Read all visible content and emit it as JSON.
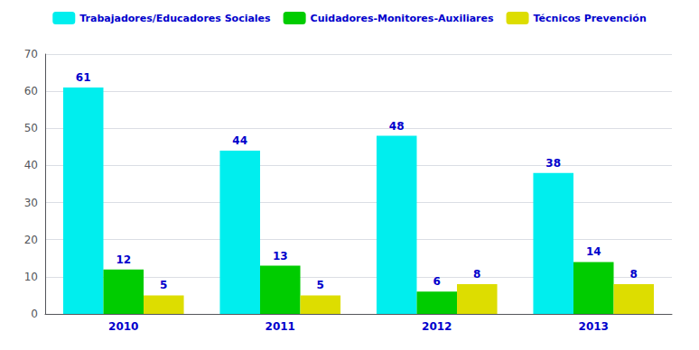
{
  "chart_data": {
    "type": "bar",
    "categories": [
      "2010",
      "2011",
      "2012",
      "2013"
    ],
    "series": [
      {
        "name": "Trabajadores/Educadores Sociales",
        "color": "#00EEEE",
        "values": [
          61,
          44,
          48,
          38
        ]
      },
      {
        "name": "Cuidadores-Monitores-Auxiliares",
        "color": "#00CC00",
        "values": [
          12,
          13,
          6,
          14
        ]
      },
      {
        "name": "Técnicos Prevención",
        "color": "#DDDD00",
        "values": [
          5,
          5,
          8,
          8
        ]
      }
    ],
    "ylim": [
      0,
      70
    ],
    "yticks": [
      0,
      10,
      20,
      30,
      40,
      50,
      60,
      70
    ],
    "grid": true,
    "legend": "top",
    "data_labels": true
  }
}
